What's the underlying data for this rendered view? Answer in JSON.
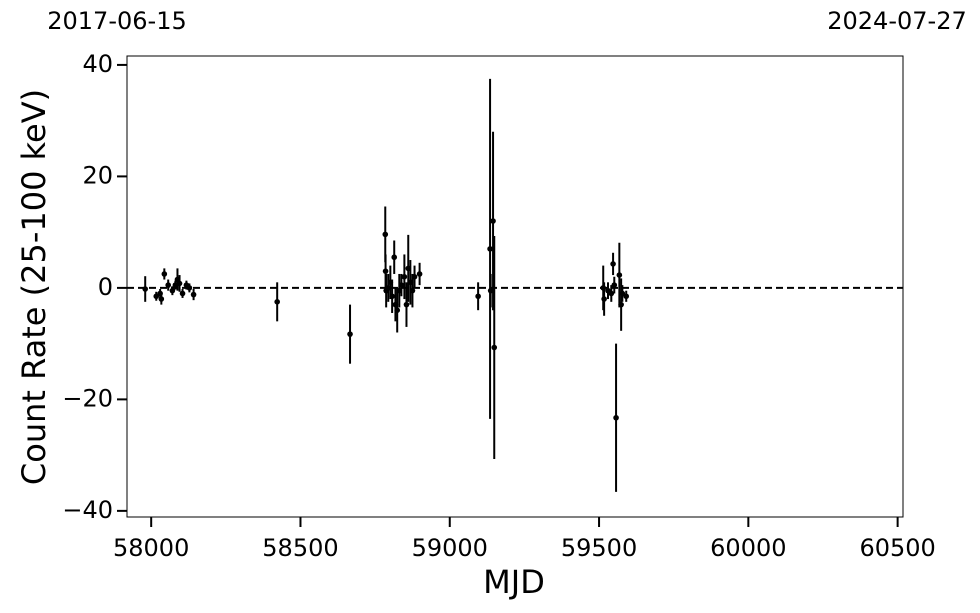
{
  "chart_data": {
    "type": "scatter",
    "xlabel": "MJD",
    "ylabel": "Count Rate (25-100 keV)",
    "xlim": [
      57919,
      60518
    ],
    "ylim": [
      -41.1,
      41.6
    ],
    "xticks": [
      58000,
      58500,
      59000,
      59500,
      60000,
      60500
    ],
    "yticks": [
      {
        "value": -40,
        "label": "−40"
      },
      {
        "value": -20,
        "label": "−20"
      },
      0,
      20,
      40
    ],
    "x2ticks": [
      {
        "value": 57919,
        "label": "2017-06-15"
      },
      {
        "value": 60518,
        "label": "2024-07-27"
      }
    ],
    "hline": 0,
    "color": "#000000",
    "x": [
      57980,
      58017,
      58030,
      58034,
      58044,
      58057,
      58071,
      58081,
      58088,
      58095,
      58105,
      58118,
      58128,
      58142,
      58422,
      58666,
      58784,
      58785,
      58787,
      58794,
      58801,
      58807,
      58814,
      58818,
      58824,
      58831,
      58838,
      58848,
      58855,
      58861,
      58868,
      58875,
      58882,
      58899,
      59095,
      59135,
      59137,
      59145,
      59149,
      59514,
      59517,
      59530,
      59541,
      59547,
      59551,
      59557,
      59568,
      59574,
      59578,
      59591
    ],
    "values": [
      -0.2,
      -1.5,
      -1,
      -2,
      2.5,
      0.5,
      -0.5,
      0.5,
      1.5,
      0.8,
      -1,
      0.5,
      0,
      -1.2,
      -2.5,
      -8.3,
      9.6,
      3,
      -0.5,
      0,
      1,
      -1.5,
      5.5,
      -3,
      -4,
      -0.5,
      0.5,
      2,
      -3,
      3.5,
      1,
      -0.5,
      2,
      2.5,
      -1.5,
      7,
      -0.5,
      12,
      -10.7,
      0,
      -2,
      -0.5,
      -1,
      4.3,
      0.5,
      -23.3,
      2.3,
      -3,
      -1,
      -1.5
    ],
    "errors": [
      2.3,
      0.8,
      0.8,
      1,
      1,
      1,
      0.8,
      0.8,
      2,
      1.5,
      0.8,
      0.8,
      0.8,
      1,
      3.5,
      5.3,
      5,
      3,
      3,
      2.5,
      3,
      3,
      3,
      3,
      4,
      3,
      2,
      4,
      4,
      6,
      4,
      3,
      2,
      2,
      2.5,
      30.5,
      3,
      16,
      20,
      4,
      3,
      1.5,
      1.5,
      2,
      1.5,
      13.3,
      5.8,
      4.7,
      1.5,
      1
    ]
  }
}
